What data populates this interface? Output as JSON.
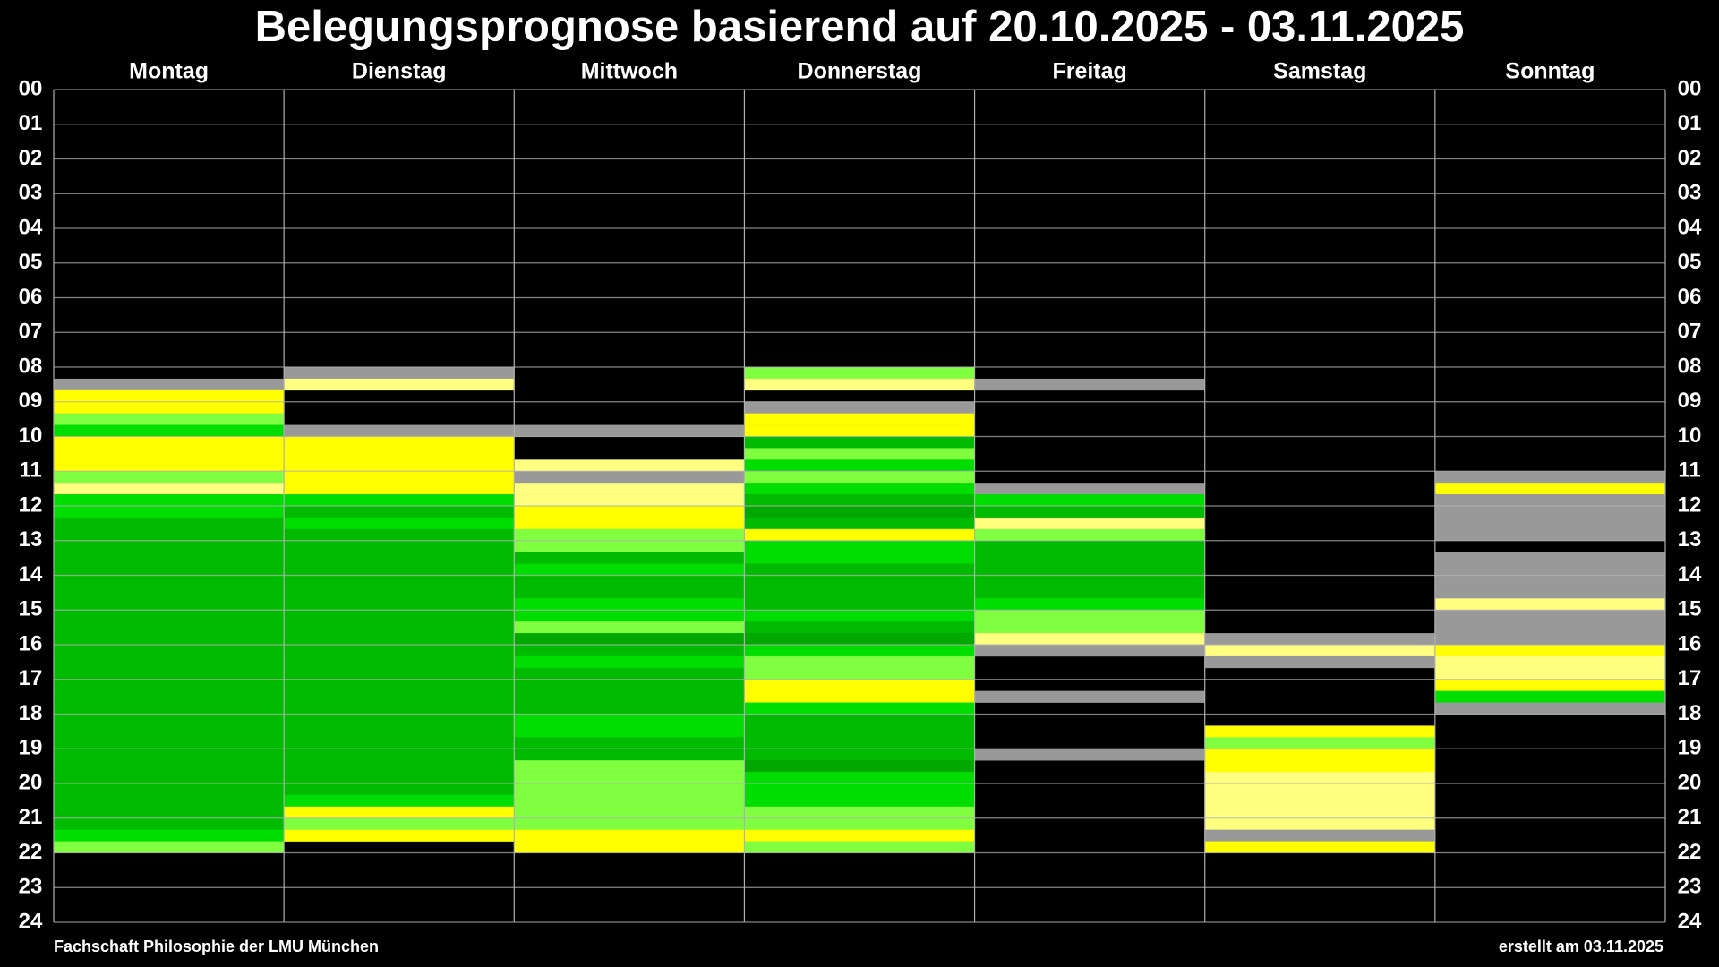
{
  "chart_data": {
    "type": "heatmap",
    "title": "Belegungsprognose basierend auf 20.10.2025 - 03.11.2025",
    "footer_left": "Fachschaft Philosophie der LMU München",
    "footer_right": "erstellt am 03.11.2025",
    "ylim": [
      0,
      24
    ],
    "yticks": [
      {
        "value": 0,
        "label": "00"
      },
      {
        "value": 1,
        "label": "01"
      },
      {
        "value": 2,
        "label": "02"
      },
      {
        "value": 3,
        "label": "03"
      },
      {
        "value": 4,
        "label": "04"
      },
      {
        "value": 5,
        "label": "05"
      },
      {
        "value": 6,
        "label": "06"
      },
      {
        "value": 7,
        "label": "07"
      },
      {
        "value": 8,
        "label": "08"
      },
      {
        "value": 9,
        "label": "09"
      },
      {
        "value": 10,
        "label": "10"
      },
      {
        "value": 11,
        "label": "11"
      },
      {
        "value": 12,
        "label": "12"
      },
      {
        "value": 13,
        "label": "13"
      },
      {
        "value": 14,
        "label": "14"
      },
      {
        "value": 15,
        "label": "15"
      },
      {
        "value": 16,
        "label": "16"
      },
      {
        "value": 17,
        "label": "17"
      },
      {
        "value": 18,
        "label": "18"
      },
      {
        "value": 19,
        "label": "19"
      },
      {
        "value": 20,
        "label": "20"
      },
      {
        "value": 21,
        "label": "21"
      },
      {
        "value": 22,
        "label": "22"
      },
      {
        "value": 23,
        "label": "23"
      },
      {
        "value": 24,
        "label": "24"
      }
    ],
    "grid": true,
    "columns": [
      {
        "label": "Montag",
        "slots": [
          null,
          null,
          null,
          null,
          null,
          null,
          null,
          null,
          null,
          null,
          null,
          null,
          null,
          null,
          null,
          null,
          null,
          null,
          null,
          null,
          null,
          null,
          null,
          null,
          null,
          "#999999",
          "#ffff00",
          "#ffff00",
          "#80ff40",
          "#00dd00",
          "#ffff00",
          "#ffff00",
          "#ffff00",
          "#80ff40",
          "#ffff80",
          "#00dd00",
          "#00dd00",
          "#00bb00",
          "#00bb00",
          "#00bb00",
          "#00bb00",
          "#00bb00",
          "#00bb00",
          "#00bb00",
          "#00bb00",
          "#00bb00",
          "#00bb00",
          "#00bb00",
          "#00bb00",
          "#00bb00",
          "#00bb00",
          "#00bb00",
          "#00bb00",
          "#00bb00",
          "#00bb00",
          "#00bb00",
          "#00bb00",
          "#00bb00",
          "#00bb00",
          "#00bb00",
          "#00bb00",
          "#00bb00",
          "#00bb00",
          "#00bb00",
          "#00dd00",
          "#80ff40",
          null,
          null,
          null,
          null,
          null,
          null
        ]
      },
      {
        "label": "Dienstag",
        "slots": [
          null,
          null,
          null,
          null,
          null,
          null,
          null,
          null,
          null,
          null,
          null,
          null,
          null,
          null,
          null,
          null,
          null,
          null,
          null,
          null,
          null,
          null,
          null,
          null,
          "#999999",
          "#ffff80",
          null,
          null,
          null,
          "#999999",
          "#ffff00",
          "#ffff00",
          "#ffff00",
          "#ffff00",
          "#ffff00",
          "#00dd00",
          "#00bb00",
          "#00dd00",
          "#00bb00",
          "#00bb00",
          "#00bb00",
          "#00bb00",
          "#00bb00",
          "#00bb00",
          "#00bb00",
          "#00bb00",
          "#00bb00",
          "#00bb00",
          "#00bb00",
          "#00bb00",
          "#00bb00",
          "#00bb00",
          "#00bb00",
          "#00bb00",
          "#00bb00",
          "#00bb00",
          "#00bb00",
          "#00bb00",
          "#00bb00",
          "#00bb00",
          "#00bb00",
          "#00dd00",
          "#ffff00",
          "#80ff40",
          "#ffff00",
          null,
          null,
          null,
          null,
          null,
          null,
          null
        ]
      },
      {
        "label": "Mittwoch",
        "slots": [
          null,
          null,
          null,
          null,
          null,
          null,
          null,
          null,
          null,
          null,
          null,
          null,
          null,
          null,
          null,
          null,
          null,
          null,
          null,
          null,
          null,
          null,
          null,
          null,
          null,
          null,
          null,
          null,
          null,
          "#999999",
          null,
          null,
          "#ffff80",
          "#999999",
          "#ffff80",
          "#ffff80",
          "#ffff00",
          "#ffff00",
          "#80ff40",
          "#80ff40",
          "#00bb00",
          "#00dd00",
          "#00bb00",
          "#00bb00",
          "#00dd00",
          "#00dd00",
          "#80ff40",
          "#00a800",
          "#00bb00",
          "#00dd00",
          "#00bb00",
          "#00bb00",
          "#00bb00",
          "#00bb00",
          "#00dd00",
          "#00dd00",
          "#00bb00",
          "#00bb00",
          "#80ff40",
          "#80ff40",
          "#80ff40",
          "#80ff40",
          "#80ff40",
          "#80ff40",
          "#ffff00",
          "#ffff00",
          null,
          null,
          null,
          null,
          null,
          null
        ]
      },
      {
        "label": "Donnerstag",
        "slots": [
          null,
          null,
          null,
          null,
          null,
          null,
          null,
          null,
          null,
          null,
          null,
          null,
          null,
          null,
          null,
          null,
          null,
          null,
          null,
          null,
          null,
          null,
          null,
          null,
          "#80ff40",
          "#ffff80",
          null,
          "#999999",
          "#ffff00",
          "#ffff00",
          "#00bb00",
          "#80ff40",
          "#00dd00",
          "#80ff40",
          "#00dd00",
          "#00bb00",
          "#00a800",
          "#00bb00",
          "#ffff00",
          "#00dd00",
          "#00dd00",
          "#00bb00",
          "#00bb00",
          "#00bb00",
          "#00bb00",
          "#00dd00",
          "#00bb00",
          "#00a800",
          "#00dd00",
          "#80ff40",
          "#80ff40",
          "#ffff00",
          "#ffff00",
          "#00dd00",
          "#00bb00",
          "#00bb00",
          "#00bb00",
          "#00bb00",
          "#00a800",
          "#00dd00",
          "#00dd00",
          "#00dd00",
          "#80ff40",
          "#80ff40",
          "#ffff00",
          "#80ff40",
          null,
          null,
          null,
          null,
          null,
          null
        ]
      },
      {
        "label": "Freitag",
        "slots": [
          null,
          null,
          null,
          null,
          null,
          null,
          null,
          null,
          null,
          null,
          null,
          null,
          null,
          null,
          null,
          null,
          null,
          null,
          null,
          null,
          null,
          null,
          null,
          null,
          null,
          "#999999",
          null,
          null,
          null,
          null,
          null,
          null,
          null,
          null,
          "#999999",
          "#00dd00",
          "#00bb00",
          "#ffff80",
          "#80ff40",
          "#00bb00",
          "#00bb00",
          "#00bb00",
          "#00bb00",
          "#00bb00",
          "#00dd00",
          "#80ff40",
          "#80ff40",
          "#ffff80",
          "#999999",
          null,
          null,
          null,
          "#999999",
          null,
          null,
          null,
          null,
          "#999999",
          null,
          null,
          null,
          null,
          null,
          null,
          null,
          null,
          null,
          null,
          null,
          null,
          null,
          null
        ]
      },
      {
        "label": "Samstag",
        "slots": [
          null,
          null,
          null,
          null,
          null,
          null,
          null,
          null,
          null,
          null,
          null,
          null,
          null,
          null,
          null,
          null,
          null,
          null,
          null,
          null,
          null,
          null,
          null,
          null,
          null,
          null,
          null,
          null,
          null,
          null,
          null,
          null,
          null,
          null,
          null,
          null,
          null,
          null,
          null,
          null,
          null,
          null,
          null,
          null,
          null,
          null,
          null,
          "#999999",
          "#ffff80",
          "#999999",
          null,
          null,
          null,
          null,
          null,
          "#ffff00",
          "#80ff40",
          "#ffff00",
          "#ffff00",
          "#ffff80",
          "#ffff80",
          "#ffff80",
          "#ffff80",
          "#ffff80",
          "#999999",
          "#ffff00",
          null,
          null,
          null,
          null,
          null,
          null
        ]
      },
      {
        "label": "Sonntag",
        "slots": [
          null,
          null,
          null,
          null,
          null,
          null,
          null,
          null,
          null,
          null,
          null,
          null,
          null,
          null,
          null,
          null,
          null,
          null,
          null,
          null,
          null,
          null,
          null,
          null,
          null,
          null,
          null,
          null,
          null,
          null,
          null,
          null,
          null,
          "#999999",
          "#ffff00",
          "#999999",
          "#999999",
          "#999999",
          "#999999",
          null,
          "#999999",
          "#999999",
          "#999999",
          "#999999",
          "#ffff80",
          "#999999",
          "#999999",
          "#999999",
          "#ffff00",
          "#ffff80",
          "#ffff80",
          "#ffff00",
          "#00dd00",
          "#999999",
          null,
          null,
          null,
          null,
          null,
          null,
          null,
          null,
          null,
          null,
          null,
          null,
          null,
          null,
          null,
          null,
          null,
          null
        ]
      }
    ]
  }
}
